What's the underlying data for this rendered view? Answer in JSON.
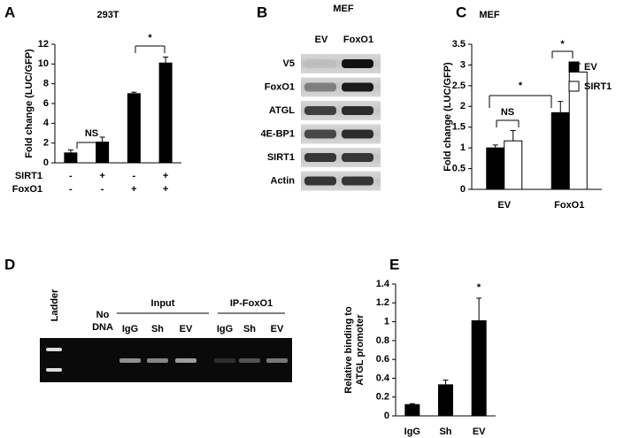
{
  "chart_data": [
    {
      "type": "bar",
      "letter": "A",
      "title": "293T",
      "ylabel": [
        "Fold change (LUC/GFP)"
      ],
      "ylim": [
        0,
        12
      ],
      "yticks": [
        0,
        2,
        4,
        6,
        8,
        10,
        12
      ],
      "values": [
        1.0,
        2.1,
        7.0,
        10.1
      ],
      "errors": [
        0.3,
        0.5,
        0.15,
        0.6
      ],
      "color": "#000000",
      "conditions": [
        {
          "name": "SIRT1",
          "values": [
            "-",
            "+",
            "-",
            "+"
          ]
        },
        {
          "name": "FoxO1",
          "values": [
            "-",
            "-",
            "+",
            "+"
          ]
        }
      ],
      "annotations": [
        "NS",
        "*"
      ]
    },
    {
      "type": "bar",
      "letter": "C",
      "title": "MEF",
      "ylabel": [
        "Fold change (LUC/GFP)"
      ],
      "ylim": [
        0,
        3.5
      ],
      "yticks": [
        0,
        0.5,
        1,
        1.5,
        2,
        2.5,
        3,
        3.5
      ],
      "categories": [
        "EV",
        "FoxO1"
      ],
      "series": [
        {
          "name": "EV",
          "color": "#000000",
          "values": [
            1.0,
            1.85
          ],
          "errors": [
            0.07,
            0.27
          ]
        },
        {
          "name": "SIRT1",
          "color": "#ffffff",
          "values": [
            1.17,
            2.83
          ],
          "errors": [
            0.25,
            0.2
          ]
        }
      ],
      "legend": "right",
      "annotations": [
        "NS",
        "*",
        "*"
      ]
    },
    {
      "type": "bar",
      "letter": "E",
      "ylabel": [
        "Relative binding to",
        "ATGL promoter"
      ],
      "ylim": [
        0,
        1.4
      ],
      "yticks": [
        0,
        0.2,
        0.4,
        0.6,
        0.8,
        1,
        1.2,
        1.4
      ],
      "categories": [
        "IgG",
        "Sh",
        "EV"
      ],
      "values": [
        0.12,
        0.33,
        1.01
      ],
      "errors": [
        0.01,
        0.05,
        0.24
      ],
      "color": "#000000",
      "annotations": [
        "*"
      ]
    }
  ],
  "blot": {
    "letter": "B",
    "title": "MEF",
    "lanes": [
      "EV",
      "FoxO1"
    ],
    "rows": [
      "V5",
      "FoxO1",
      "ATGL",
      "4E-BP1",
      "SIRT1",
      "Actin"
    ]
  },
  "gel": {
    "letter": "D",
    "ladder": "Ladder",
    "no_dna": [
      "No",
      "DNA"
    ],
    "groups": [
      {
        "name": "Input",
        "lanes": [
          "IgG",
          "Sh",
          "EV"
        ]
      },
      {
        "name": "IP-FoxO1",
        "lanes": [
          "IgG",
          "Sh",
          "EV"
        ]
      }
    ]
  }
}
